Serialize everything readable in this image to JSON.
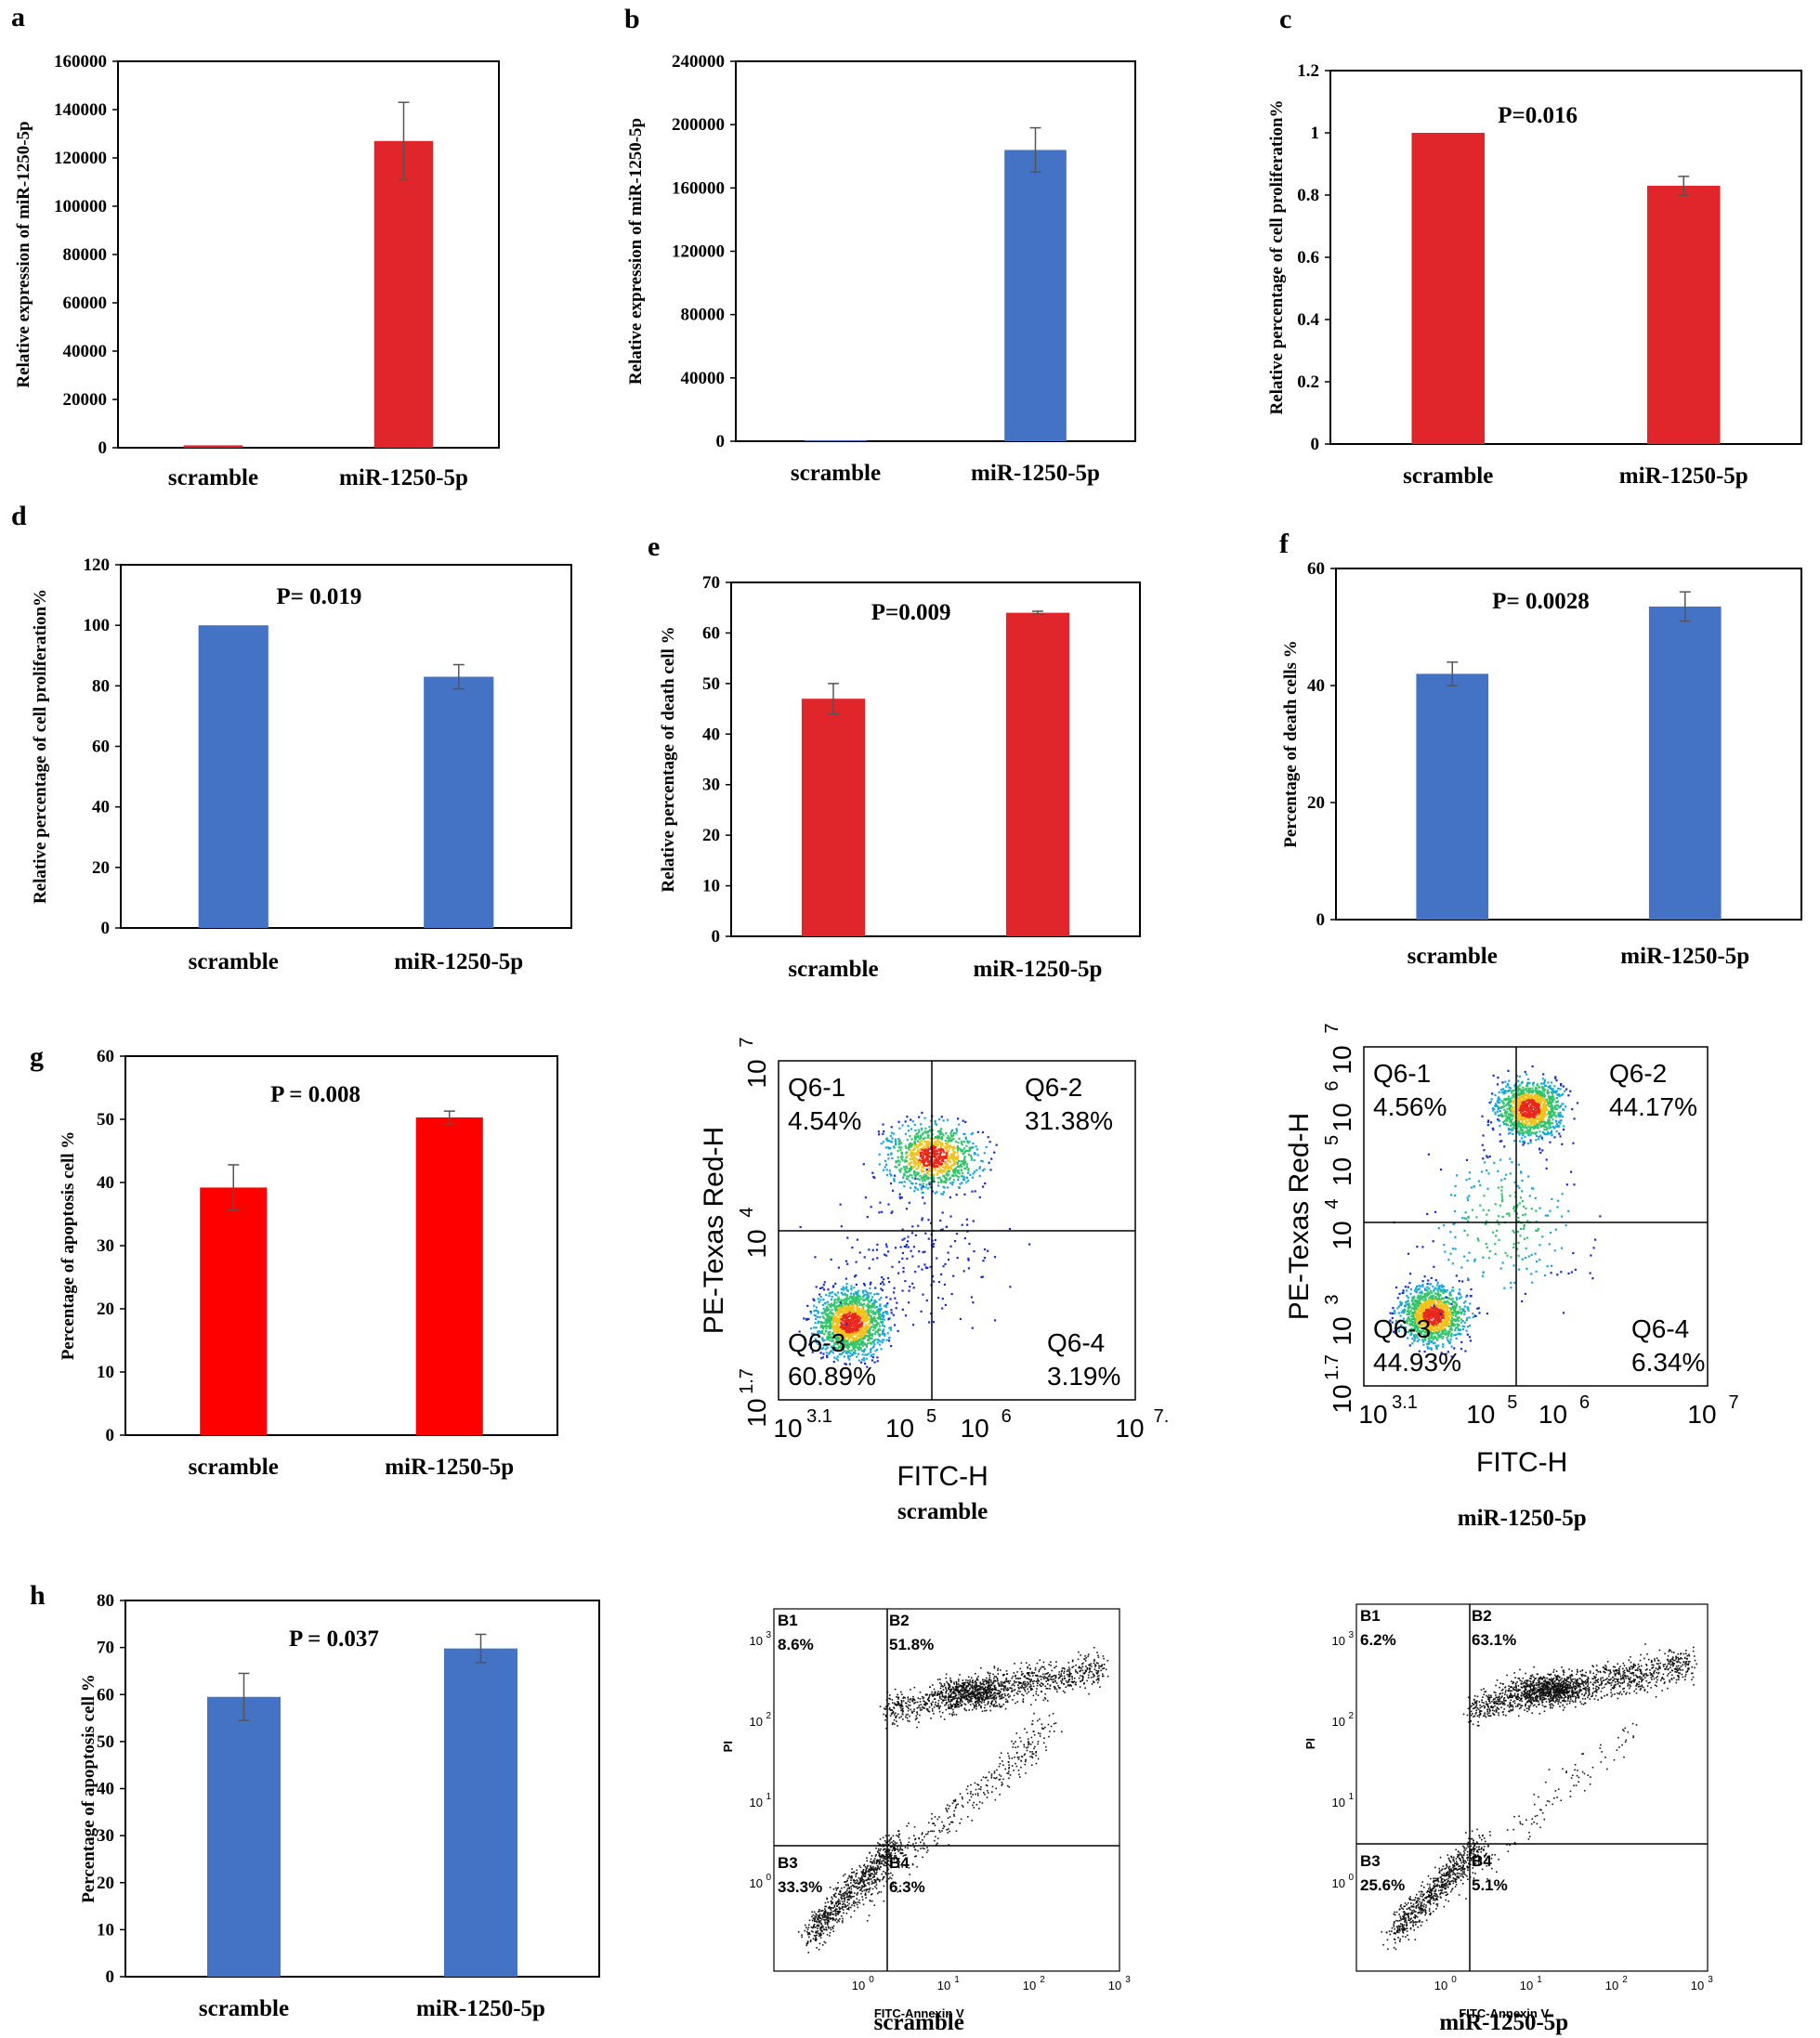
{
  "colors": {
    "red": "#e0262a",
    "brightRed": "#ff0000",
    "blue": "#4472c4"
  },
  "chart_data": [
    {
      "id": "a",
      "type": "bar",
      "panel_label": "a",
      "ylabel": "Relative expression of miR-1250-5p",
      "categories": [
        "scramble",
        "miR-1250-5p"
      ],
      "values": [
        1000,
        127000
      ],
      "errors": [
        0,
        16000
      ],
      "ylim": [
        0,
        160000
      ],
      "yticks": [
        "0",
        "20000",
        "40000",
        "60000",
        "80000",
        "100000",
        "120000",
        "140000",
        "160000"
      ],
      "p_value": "",
      "color": "red"
    },
    {
      "id": "b",
      "type": "bar",
      "panel_label": "b",
      "ylabel": "Relative expression of miR-1250-5p",
      "categories": [
        "scramble",
        "miR-1250-5p"
      ],
      "values": [
        500,
        184000
      ],
      "errors": [
        0,
        14000
      ],
      "ylim": [
        0,
        240000
      ],
      "yticks": [
        "0",
        "40000",
        "80000",
        "120000",
        "160000",
        "200000",
        "240000"
      ],
      "p_value": "",
      "color": "blue"
    },
    {
      "id": "c",
      "type": "bar",
      "panel_label": "c",
      "ylabel": "Relative percentage of cell proliferation%",
      "categories": [
        "scramble",
        "miR-1250-5p"
      ],
      "values": [
        1.0,
        0.83
      ],
      "errors": [
        0,
        0.03
      ],
      "ylim": [
        0,
        1.2
      ],
      "yticks": [
        "0",
        "0.2",
        "0.4",
        "0.6",
        "0.8",
        "1",
        "1.2"
      ],
      "p_value": "P=0.016",
      "color": "red"
    },
    {
      "id": "d",
      "type": "bar",
      "panel_label": "d",
      "ylabel": "Relative percentage of cell proliferation%",
      "categories": [
        "scramble",
        "miR-1250-5p"
      ],
      "values": [
        100,
        83
      ],
      "errors": [
        0,
        4
      ],
      "ylim": [
        0,
        120
      ],
      "yticks": [
        "0",
        "20",
        "40",
        "60",
        "80",
        "100",
        "120"
      ],
      "p_value": "P= 0.019",
      "color": "blue"
    },
    {
      "id": "e",
      "type": "bar",
      "panel_label": "e",
      "ylabel": "Relative percentage of death cell %",
      "categories": [
        "scramble",
        "miR-1250-5p"
      ],
      "values": [
        47,
        64
      ],
      "errors": [
        3,
        0.3
      ],
      "ylim": [
        0,
        70
      ],
      "yticks": [
        "0",
        "10",
        "20",
        "30",
        "40",
        "50",
        "60",
        "70"
      ],
      "p_value": "P=0.009",
      "color": "red"
    },
    {
      "id": "f",
      "type": "bar",
      "panel_label": "f",
      "ylabel": "Percentage of death cells %",
      "categories": [
        "scramble",
        "miR-1250-5p"
      ],
      "values": [
        42,
        53.5
      ],
      "errors": [
        2,
        2.5
      ],
      "ylim": [
        0,
        60
      ],
      "yticks": [
        "0",
        "20",
        "40",
        "60"
      ],
      "p_value": "P= 0.0028",
      "color": "blue"
    },
    {
      "id": "g",
      "type": "bar",
      "panel_label": "g",
      "ylabel": "Percentage of apoptosis cell %",
      "categories": [
        "scramble",
        "miR-1250-5p"
      ],
      "values": [
        39.2,
        50.3
      ],
      "errors": [
        3.6,
        1
      ],
      "ylim": [
        0,
        60
      ],
      "yticks": [
        "0",
        "10",
        "20",
        "30",
        "40",
        "50",
        "60"
      ],
      "p_value": "P = 0.008",
      "color": "brightRed"
    },
    {
      "id": "h",
      "type": "bar",
      "panel_label": "h",
      "ylabel": "Percentage of apoptosis cell %",
      "categories": [
        "scramble",
        "miR-1250-5p"
      ],
      "values": [
        59.5,
        69.8
      ],
      "errors": [
        5,
        3
      ],
      "ylim": [
        0,
        80
      ],
      "yticks": [
        "0",
        "10",
        "20",
        "30",
        "40",
        "50",
        "60",
        "70",
        "80"
      ],
      "p_value": "P = 0.037",
      "color": "blue"
    }
  ],
  "flow_g": [
    {
      "id": "g1",
      "caption": "scramble",
      "xlabel": "FITC-H",
      "ylabel": "PE-Texas Red-H",
      "xticks": [
        "3.1",
        "5",
        "6",
        "7."
      ],
      "yticks": [
        "1.7",
        "4",
        "7"
      ],
      "quadrants": {
        "q1": {
          "name": "Q6-1",
          "pct": "4.54%"
        },
        "q2": {
          "name": "Q6-2",
          "pct": "31.38%"
        },
        "q3": {
          "name": "Q6-3",
          "pct": "60.89%"
        },
        "q4": {
          "name": "Q6-4",
          "pct": "3.19%"
        }
      }
    },
    {
      "id": "g2",
      "caption": "miR-1250-5p",
      "xlabel": "FITC-H",
      "ylabel": "PE-Texas Red-H",
      "xticks": [
        "3.1",
        "5",
        "6",
        "7"
      ],
      "yticks": [
        "1.7",
        "3",
        "4",
        "5",
        "6",
        "7"
      ],
      "quadrants": {
        "q1": {
          "name": "Q6-1",
          "pct": "4.56%"
        },
        "q2": {
          "name": "Q6-2",
          "pct": "44.17%"
        },
        "q3": {
          "name": "Q6-3",
          "pct": "44.93%"
        },
        "q4": {
          "name": "Q6-4",
          "pct": "6.34%"
        }
      }
    }
  ],
  "flow_h": [
    {
      "id": "h1",
      "caption": "scramble",
      "xlabel": "FITC-Annexin V",
      "ylabel": "PI",
      "ticks": [
        "0",
        "1",
        "2",
        "3"
      ],
      "quadrants": {
        "b1": {
          "name": "B1",
          "pct": "8.6%"
        },
        "b2": {
          "name": "B2",
          "pct": "51.8%"
        },
        "b3": {
          "name": "B3",
          "pct": "33.3%"
        },
        "b4": {
          "name": "B4",
          "pct": "6.3%"
        }
      }
    },
    {
      "id": "h2",
      "caption": "miR-1250-5p",
      "xlabel": "FITC-Annexin V",
      "ylabel": "PI",
      "ticks": [
        "0",
        "1",
        "2",
        "3"
      ],
      "quadrants": {
        "b1": {
          "name": "B1",
          "pct": "6.2%"
        },
        "b2": {
          "name": "B2",
          "pct": "63.1%"
        },
        "b3": {
          "name": "B3",
          "pct": "25.6%"
        },
        "b4": {
          "name": "B4",
          "pct": "5.1%"
        }
      }
    }
  ]
}
